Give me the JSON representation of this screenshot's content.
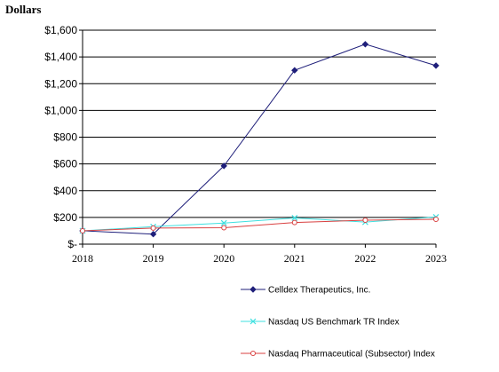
{
  "chart_data": {
    "type": "line",
    "ylabel": "Dollars",
    "xlabel": "",
    "x": [
      "2018",
      "2019",
      "2020",
      "2021",
      "2022",
      "2023"
    ],
    "ylim": [
      0,
      1600
    ],
    "y_ticks": [
      0,
      200,
      400,
      600,
      800,
      1000,
      1200,
      1400,
      1600
    ],
    "y_tick_labels": [
      "$-",
      "$200",
      "$400",
      "$600",
      "$800",
      "$1,000",
      "$1,200",
      "$1,400",
      "$1,600"
    ],
    "grid": "horizontal",
    "legend_position": "bottom-right",
    "series": [
      {
        "name": "Celldex Therapeutics, Inc.",
        "values": [
          100,
          75,
          585,
          1300,
          1495,
          1335
        ],
        "color": "#1f1f7a",
        "marker": "diamond"
      },
      {
        "name": "Nasdaq US Benchmark TR Index",
        "values": [
          100,
          131,
          158,
          196,
          165,
          203
        ],
        "color": "#3fe0e0",
        "marker": "x"
      },
      {
        "name": "Nasdaq Pharmaceutical (Subsector) Index",
        "values": [
          100,
          120,
          123,
          162,
          179,
          186
        ],
        "color": "#d94040",
        "marker": "circle"
      }
    ]
  }
}
